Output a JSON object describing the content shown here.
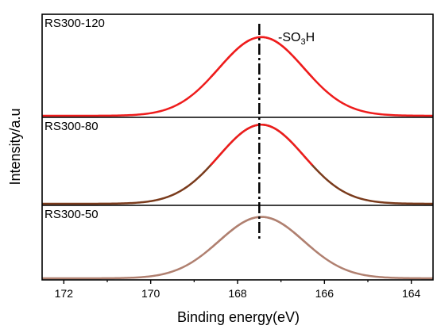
{
  "chart_data": {
    "type": "line",
    "xlabel": "Binding energy(eV)",
    "ylabel": "Intensity/a.u",
    "xlim": [
      172.5,
      163.5
    ],
    "x_reversed": true,
    "x_ticks": [
      172,
      170,
      168,
      166,
      164
    ],
    "y_ticks_shown": false,
    "grid": false,
    "reference_line": {
      "x": 167.5,
      "style": "dash-dot"
    },
    "annotation": {
      "text": "-SO",
      "subscript": "3",
      "suffix": "H"
    },
    "panels": [
      {
        "label": "RS300-120",
        "peak_center": 167.45,
        "fwhm": 2.3,
        "peak_height": 0.8,
        "color": "#ee1c1c",
        "lower_color": "#ee1c1c"
      },
      {
        "label": "RS300-80",
        "peak_center": 167.45,
        "fwhm": 2.3,
        "peak_height": 0.95,
        "color": "#ee1c1c",
        "lower_color": "#7a3b1c"
      },
      {
        "label": "RS300-50",
        "peak_center": 167.45,
        "fwhm": 2.3,
        "peak_height": 0.88,
        "color": "#b08070",
        "lower_color": "#b08070"
      }
    ]
  }
}
